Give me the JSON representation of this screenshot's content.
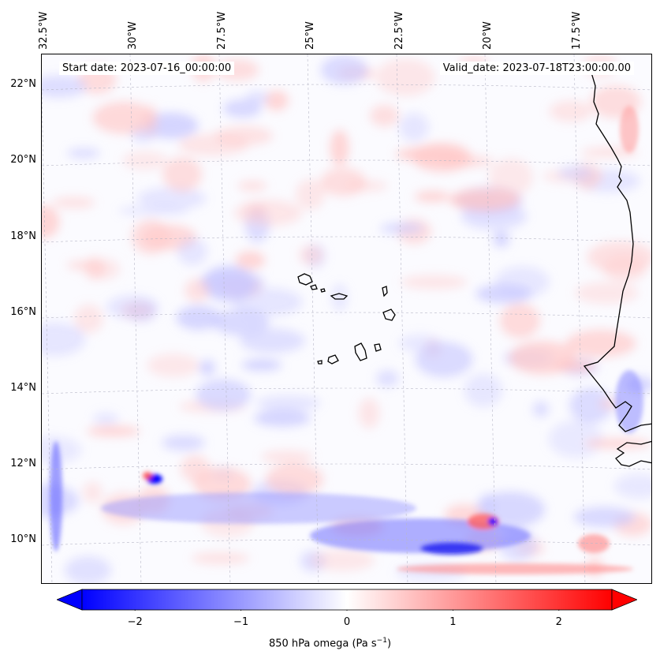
{
  "header": {
    "start_date": "Start date: 2023-07-16_00:00:00",
    "valid_date": "Valid_date: 2023-07-18T23:00:00.00"
  },
  "longitude_labels": [
    "32.5°W",
    "30°W",
    "27.5°W",
    "25°W",
    "22.5°W",
    "20°W",
    "17.5°W"
  ],
  "latitude_labels": [
    "22°N",
    "20°N",
    "18°N",
    "16°N",
    "14°N",
    "12°N",
    "10°N"
  ],
  "map": {
    "field": "850 hPa omega",
    "colormap": "bwr",
    "negative_color": "#0000ff",
    "positive_color": "#ff0000",
    "coastline_color": "#000000",
    "gridlines": true,
    "region": "Cabo Verde islands and West African coast"
  },
  "colorbar": {
    "ticks": [
      "−2",
      "−1",
      "0",
      "1",
      "2"
    ],
    "tick_values": [
      -2,
      -1,
      0,
      1,
      2
    ],
    "range": [
      -2.5,
      2.5
    ],
    "extend": "both",
    "label": "850 hPa omega (Pa s",
    "label_sup": "−1",
    "label_close": ")"
  }
}
